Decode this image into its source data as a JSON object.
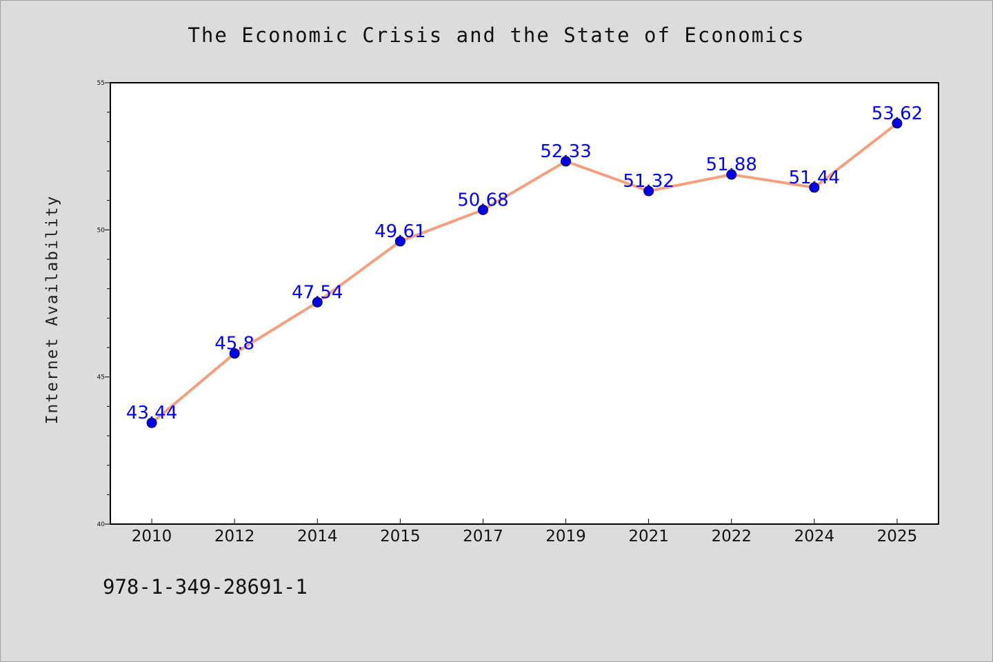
{
  "chart_data": {
    "type": "line",
    "title": "The Economic Crisis and the State of Economics",
    "ylabel": "Internet Availability",
    "xlabel": "",
    "categories": [
      "2010",
      "2012",
      "2014",
      "2015",
      "2017",
      "2019",
      "2021",
      "2022",
      "2024",
      "2025"
    ],
    "values": [
      43.44,
      45.8,
      47.54,
      49.61,
      50.68,
      52.33,
      51.32,
      51.88,
      51.44,
      53.62
    ],
    "data_labels": [
      "43.44",
      "45.8",
      "47.54",
      "49.61",
      "50.68",
      "52.33",
      "51.32",
      "51.88",
      "51.44",
      "53.62"
    ],
    "ylim": [
      40,
      55
    ],
    "yticks": [
      "40",
      "45",
      "50",
      "55"
    ],
    "grid": false,
    "line_color": "#f4a07e",
    "marker_color": "#0000ee",
    "label_color": "#0000ff"
  },
  "footer": {
    "isbn": "978-1-349-28691-1"
  }
}
